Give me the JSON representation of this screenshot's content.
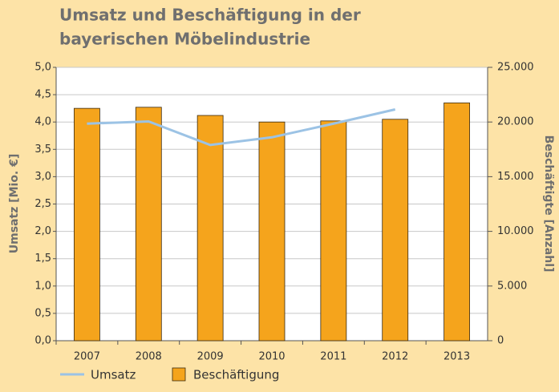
{
  "chart_data": {
    "type": "bar",
    "title": "Umsatz und Beschäftigung in der bayerischen Möbelindustrie",
    "title_lines": [
      "Umsatz und Beschäftigung in der",
      "bayerischen Möbelindustrie"
    ],
    "y_label": "Umsatz [Mio. €]",
    "y2_label": "Beschäftigte [Anzahl]",
    "categories": [
      "2007",
      "2008",
      "2009",
      "2010",
      "2011",
      "2012",
      "2013"
    ],
    "series": [
      {
        "name": "Umsatz",
        "type": "line",
        "color": "#9cc3e5",
        "values": [
          3.97,
          4.01,
          3.58,
          3.72,
          3.97,
          4.23,
          null
        ]
      },
      {
        "name": "Beschäftigung",
        "type": "bar",
        "axis": "y2",
        "color": "#f5a41c",
        "values": [
          21250,
          21350,
          20600,
          20000,
          20100,
          20250,
          21750
        ]
      }
    ],
    "ylim": [
      0,
      5
    ],
    "yticks": [
      {
        "value": 0,
        "label": "0,0"
      },
      {
        "value": 0.5,
        "label": "0,5"
      },
      {
        "value": 1,
        "label": "1,0"
      },
      {
        "value": 1.5,
        "label": "1,5"
      },
      {
        "value": 2,
        "label": "2,0"
      },
      {
        "value": 2.5,
        "label": "2,5"
      },
      {
        "value": 3,
        "label": "3,0"
      },
      {
        "value": 3.5,
        "label": "3,5"
      },
      {
        "value": 4,
        "label": "4,0"
      },
      {
        "value": 4.5,
        "label": "4,5"
      },
      {
        "value": 5,
        "label": "5,0"
      }
    ],
    "y2lim": [
      0,
      25000
    ],
    "y2ticks": [
      0,
      {
        "value": 5000,
        "label": "5.000"
      },
      {
        "value": 10000,
        "label": "10.000"
      },
      {
        "value": 15000,
        "label": "15.000"
      },
      {
        "value": 20000,
        "label": "20.000"
      },
      {
        "value": 25000,
        "label": "25.000"
      }
    ],
    "grid": true
  }
}
